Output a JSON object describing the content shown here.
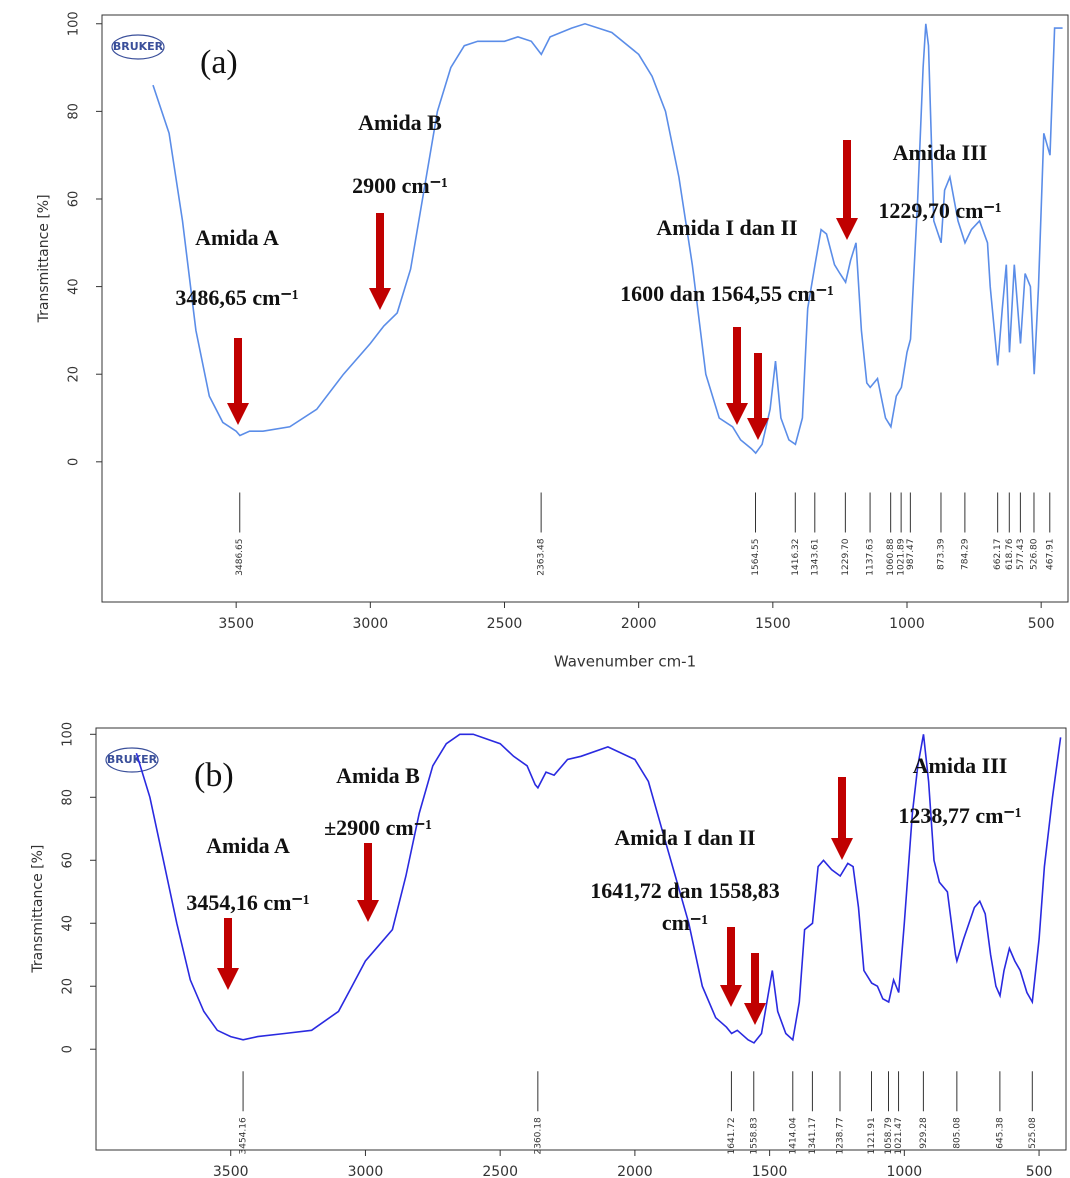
{
  "chart_data": [
    {
      "type": "line",
      "label": "(a)",
      "logo": "BRUKER",
      "y_label": "Transmittance [%]",
      "x_label": "Wavenumber cm-1",
      "xlim": [
        4000,
        400
      ],
      "ylim": [
        -32,
        102
      ],
      "xticks": [
        3500,
        3000,
        2500,
        2000,
        1500,
        1000,
        500
      ],
      "yticks": [
        0,
        20,
        40,
        60,
        80,
        100
      ],
      "color": "#5b8de8",
      "x": [
        3810,
        3750,
        3700,
        3650,
        3600,
        3550,
        3500,
        3486,
        3450,
        3400,
        3300,
        3200,
        3100,
        3000,
        2950,
        2900,
        2850,
        2800,
        2750,
        2700,
        2650,
        2600,
        2500,
        2450,
        2400,
        2363,
        2330,
        2250,
        2200,
        2100,
        2000,
        1950,
        1900,
        1850,
        1800,
        1750,
        1700,
        1650,
        1620,
        1580,
        1564,
        1540,
        1510,
        1490,
        1470,
        1440,
        1416,
        1390,
        1370,
        1343,
        1320,
        1300,
        1270,
        1250,
        1229,
        1210,
        1190,
        1170,
        1150,
        1137,
        1110,
        1080,
        1060,
        1040,
        1021,
        1000,
        987,
        960,
        940,
        930,
        920,
        900,
        873,
        860,
        840,
        810,
        784,
        760,
        730,
        700,
        690,
        662,
        645,
        630,
        618,
        600,
        577,
        560,
        540,
        526,
        510,
        490,
        467,
        450,
        420
      ],
      "values": [
        86,
        75,
        55,
        30,
        15,
        9,
        7,
        6,
        7,
        7,
        8,
        12,
        20,
        27,
        31,
        34,
        44,
        62,
        80,
        90,
        95,
        96,
        96,
        97,
        96,
        93,
        97,
        99,
        100,
        98,
        93,
        88,
        80,
        65,
        45,
        20,
        10,
        8,
        5,
        3,
        2,
        4,
        12,
        23,
        10,
        5,
        4,
        10,
        35,
        45,
        53,
        52,
        45,
        43,
        41,
        46,
        50,
        30,
        18,
        17,
        19,
        10,
        8,
        15,
        17,
        25,
        28,
        60,
        90,
        100,
        95,
        55,
        50,
        62,
        65,
        55,
        50,
        53,
        55,
        50,
        40,
        22,
        35,
        45,
        25,
        45,
        27,
        43,
        40,
        20,
        40,
        75,
        70,
        99,
        99
      ],
      "peaks": [
        3486.65,
        2363.48,
        1564.55,
        1416.32,
        1343.61,
        {
          "value": 1229.7,
          "label": "1229.70"
        },
        1137.63,
        1060.88,
        1021.89,
        987.47,
        873.39,
        784.29,
        662.17,
        618.76,
        577.43,
        {
          "value": 526.8,
          "label": "526.80"
        },
        467.91
      ],
      "annotations": [
        "Amida A",
        "3486,65 cm⁻¹",
        "Amida B",
        "2900 cm⁻¹",
        "Amida I dan II",
        "1600 dan 1564,55 cm⁻¹",
        "Amida III",
        "1229,70 cm⁻¹"
      ]
    },
    {
      "type": "line",
      "label": "(b)",
      "logo": "BRUKER",
      "y_label": "Transmittance [%]",
      "xlim": [
        4000,
        400
      ],
      "ylim": [
        -32,
        102
      ],
      "xticks": [
        3500,
        3000,
        2500,
        2000,
        1500,
        1000,
        500
      ],
      "yticks": [
        0,
        20,
        40,
        60,
        80,
        100
      ],
      "color": "#2a2ae0",
      "x": [
        3850,
        3800,
        3750,
        3700,
        3650,
        3600,
        3550,
        3500,
        3454,
        3400,
        3300,
        3200,
        3100,
        3050,
        3000,
        2950,
        2900,
        2850,
        2800,
        2750,
        2700,
        2650,
        2600,
        2500,
        2450,
        2400,
        2370,
        2360,
        2330,
        2300,
        2250,
        2200,
        2100,
        2000,
        1950,
        1900,
        1850,
        1800,
        1750,
        1700,
        1660,
        1641,
        1620,
        1580,
        1558,
        1530,
        1510,
        1490,
        1470,
        1440,
        1414,
        1390,
        1370,
        1341,
        1320,
        1300,
        1270,
        1238,
        1210,
        1190,
        1170,
        1150,
        1121,
        1100,
        1080,
        1058,
        1040,
        1021,
        1000,
        970,
        950,
        929,
        910,
        890,
        870,
        840,
        810,
        805,
        780,
        740,
        720,
        700,
        680,
        660,
        645,
        630,
        610,
        590,
        570,
        545,
        525,
        500,
        480,
        450,
        420
      ],
      "values": [
        94,
        80,
        60,
        40,
        22,
        12,
        6,
        4,
        3,
        4,
        5,
        6,
        12,
        20,
        28,
        33,
        38,
        55,
        75,
        90,
        97,
        100,
        100,
        97,
        93,
        90,
        84,
        83,
        88,
        87,
        92,
        93,
        96,
        92,
        85,
        70,
        55,
        40,
        20,
        10,
        7,
        5,
        6,
        3,
        2,
        5,
        15,
        25,
        12,
        5,
        3,
        15,
        38,
        40,
        58,
        60,
        57,
        55,
        59,
        58,
        45,
        25,
        21,
        20,
        16,
        15,
        22,
        18,
        40,
        75,
        90,
        100,
        85,
        60,
        53,
        50,
        30,
        28,
        35,
        45,
        47,
        43,
        30,
        20,
        17,
        25,
        32,
        28,
        25,
        18,
        15,
        35,
        58,
        80,
        99
      ],
      "peaks": [
        3454.16,
        2360.18,
        1641.72,
        1558.83,
        1414.04,
        1341.17,
        1238.77,
        1121.91,
        1058.79,
        1021.47,
        929.28,
        805.08,
        645.38,
        525.08
      ],
      "annotations": [
        "Amida A",
        "3454,16 cm⁻¹",
        "Amida B",
        "±2900 cm⁻¹",
        "Amida I dan II",
        "1641,72 dan 1558,83",
        "cm⁻¹",
        "Amida III",
        "1238,77 cm⁻¹"
      ]
    }
  ]
}
